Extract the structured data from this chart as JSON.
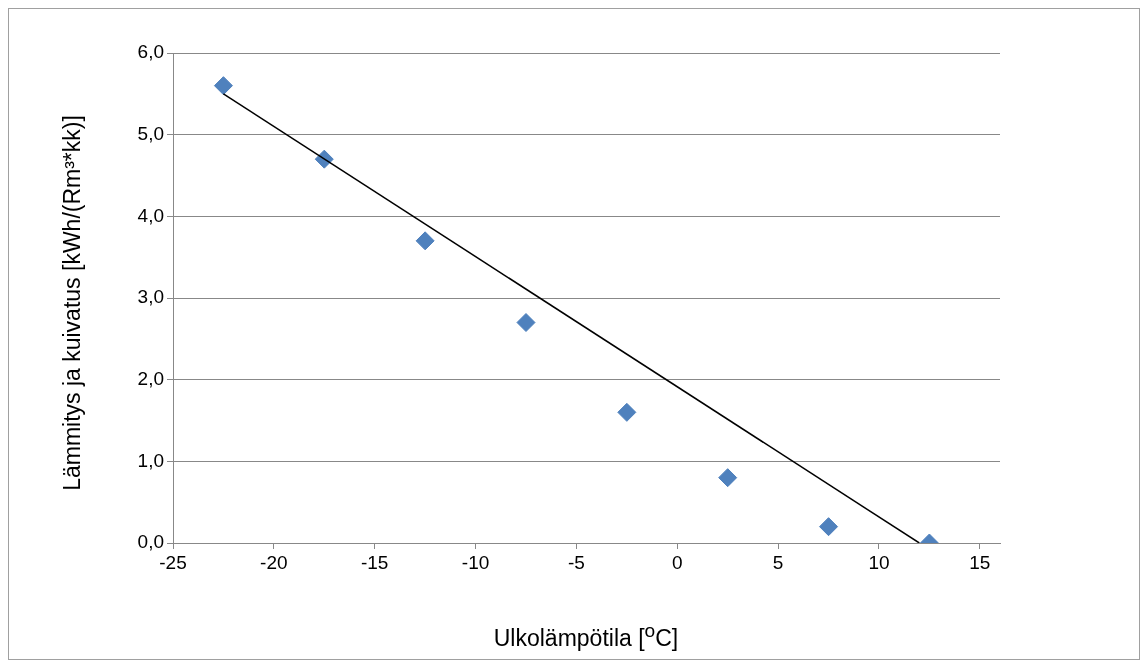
{
  "chart_data": {
    "type": "scatter",
    "xlabel": "Ulkolämpötila [$^{o}$C]",
    "ylabel": "Lämmitys ja kuivatus [kWh/(Rm³*kk)]",
    "xlim": [
      -25,
      16
    ],
    "xticks": [
      -25,
      -20,
      -15,
      -10,
      -5,
      0,
      5,
      10,
      15
    ],
    "ylim": [
      0,
      6
    ],
    "yticks": [
      {
        "value": 0,
        "label": "0,0"
      },
      {
        "value": 1,
        "label": "1,0"
      },
      {
        "value": 2,
        "label": "2,0"
      },
      {
        "value": 3,
        "label": "3,0"
      },
      {
        "value": 4,
        "label": "4,0"
      },
      {
        "value": 5,
        "label": "5,0"
      },
      {
        "value": 6,
        "label": "6,0"
      }
    ],
    "grid": "y",
    "legend": false,
    "series": [
      {
        "marker": "diamond",
        "color": "#4f81bd",
        "x": [
          -22.5,
          -17.5,
          -12.5,
          -7.5,
          -2.5,
          2.5,
          7.5,
          12.5
        ],
        "values": [
          5.6,
          4.7,
          3.7,
          2.7,
          1.6,
          0.8,
          0.2,
          0.0
        ]
      },
      {
        "type": "line",
        "marker": "none",
        "color": "#000000",
        "x": [
          -22.5,
          12
        ],
        "values": [
          5.5,
          0
        ]
      }
    ]
  }
}
